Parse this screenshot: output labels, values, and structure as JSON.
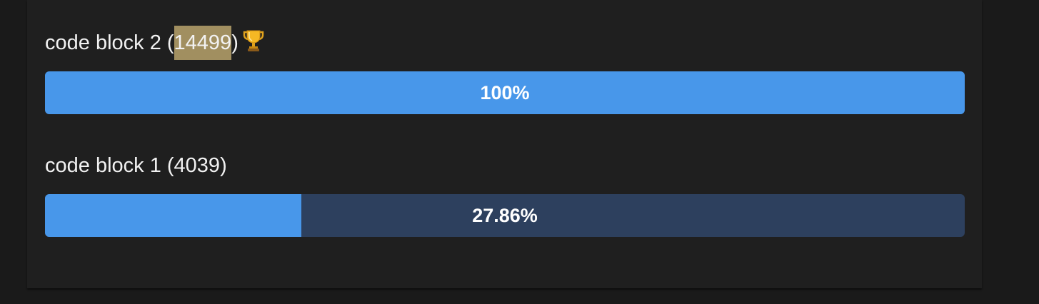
{
  "colors": {
    "page_background": "#1a1a1a",
    "panel_background": "#1f1f1f",
    "bar_track": "#2d405e",
    "bar_fill": "#4897ea",
    "highlight": "#a18f60",
    "text": "#f2f2f2"
  },
  "results": [
    {
      "label_prefix": "code block 2 (",
      "count": "14499",
      "label_suffix": ")",
      "icon": "trophy-icon",
      "percent_label": "100%",
      "fill_fraction": 1.0
    },
    {
      "label_prefix": "code block 1 (",
      "count": "4039",
      "label_suffix": ")",
      "percent_label": "27.86%",
      "fill_fraction": 0.2786
    }
  ]
}
